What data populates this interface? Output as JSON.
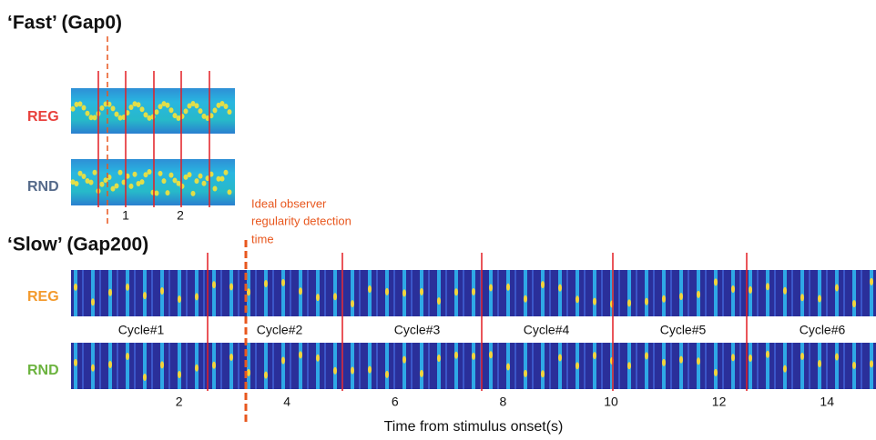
{
  "fast": {
    "title": "‘Fast’ (Gap0)",
    "rows": [
      "REG",
      "RND"
    ],
    "ticks": [
      1,
      2
    ]
  },
  "annotation": [
    "Ideal observer",
    "regularity detection",
    "time"
  ],
  "slow": {
    "title": "‘Slow’ (Gap200)",
    "rows": [
      "REG",
      "RND"
    ],
    "cycles": [
      "Cycle#1",
      "Cycle#2",
      "Cycle#3",
      "Cycle#4",
      "Cycle#5",
      "Cycle#6"
    ]
  },
  "axis": {
    "ticks": [
      2,
      4,
      6,
      8,
      10,
      12,
      14
    ],
    "label": "Time from stimulus onset(s)"
  }
}
